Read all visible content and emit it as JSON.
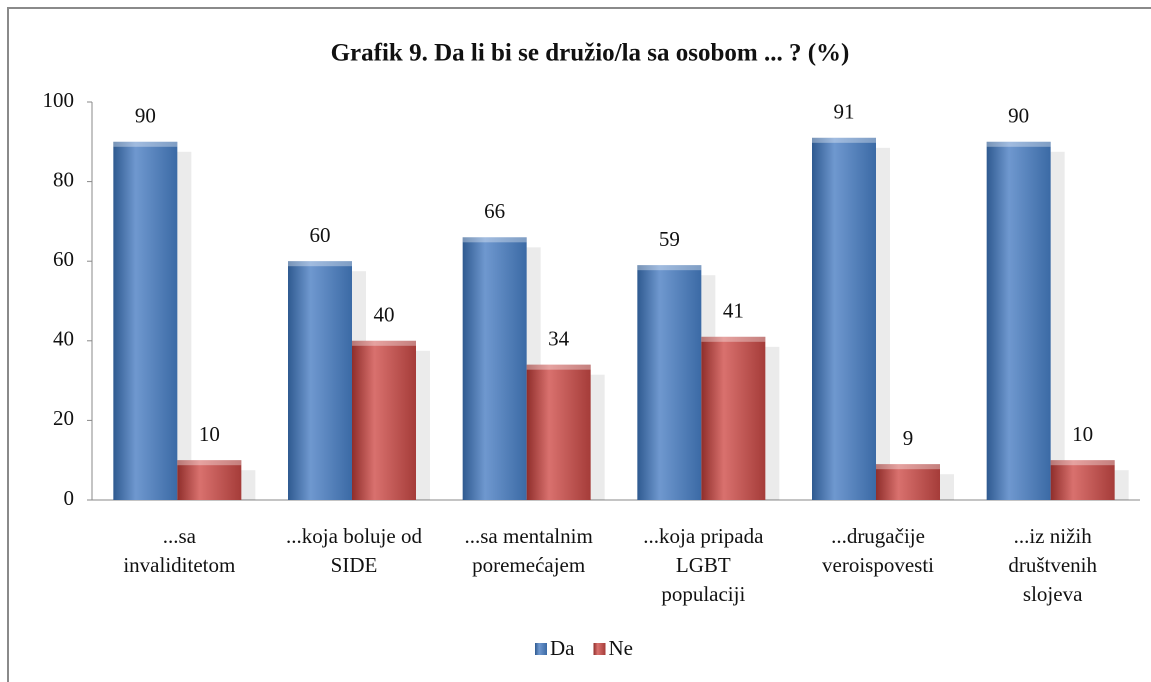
{
  "chart_data": {
    "type": "bar",
    "title": "Grafik 9. Da li bi se družio/la sa osobom ... ? (%)",
    "categories": [
      [
        "...sa",
        "invaliditetom"
      ],
      [
        "...koja boluje od",
        "SIDE"
      ],
      [
        "...sa mentalnim",
        "poremećajem"
      ],
      [
        "...koja pripada",
        "LGBT",
        "populaciji"
      ],
      [
        "...drugačije",
        "veroispovesti"
      ],
      [
        "...iz nižih",
        "društvenih",
        "slojeva"
      ]
    ],
    "series": [
      {
        "name": "Da",
        "color": "#4f81bd",
        "values": [
          90,
          60,
          66,
          59,
          91,
          90
        ]
      },
      {
        "name": "Ne",
        "color": "#c0504d",
        "values": [
          10,
          40,
          34,
          41,
          9,
          10
        ]
      }
    ],
    "ylim": [
      0,
      100
    ],
    "yticks": [
      0,
      20,
      40,
      60,
      80,
      100
    ],
    "legend": "bottom"
  }
}
